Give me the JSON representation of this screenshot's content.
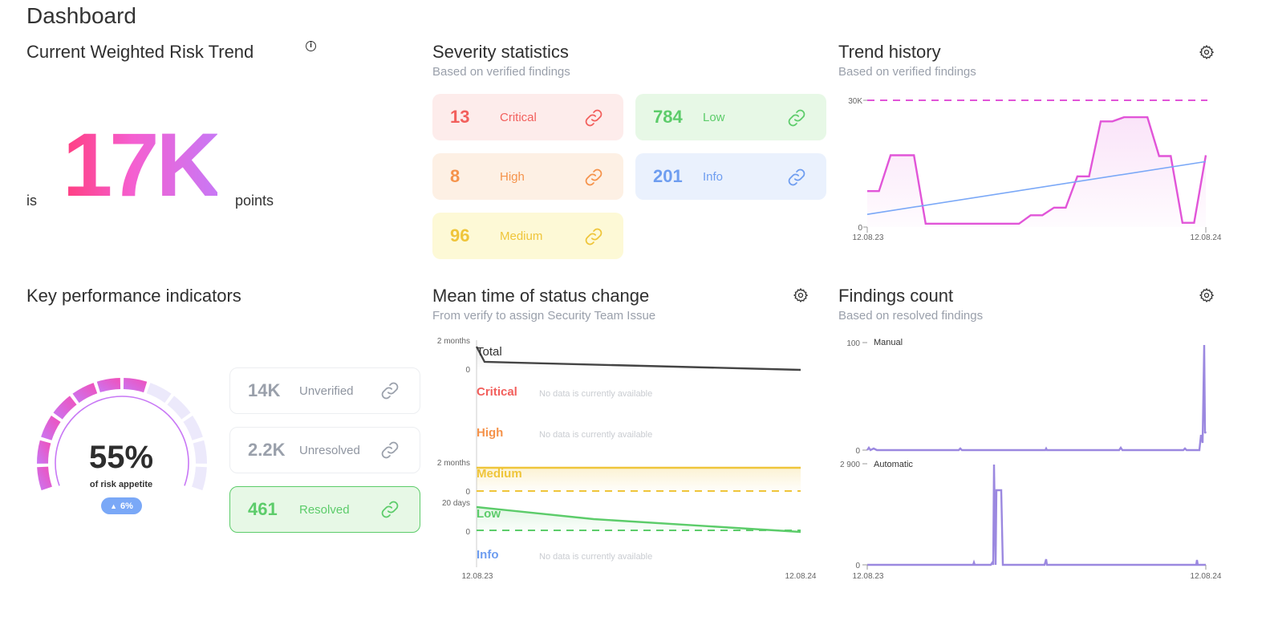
{
  "page": {
    "title": "Dashboard"
  },
  "risk": {
    "title": "Current Weighted Risk Trend",
    "prefix": "is",
    "value": "17K",
    "suffix": "points"
  },
  "severity": {
    "title": "Severity statistics",
    "subtitle": "Based on verified findings",
    "items": [
      {
        "count": "13",
        "label": "Critical",
        "color": "#f25f5c",
        "bg": "#fdeceb"
      },
      {
        "count": "784",
        "label": "Low",
        "color": "#5ccc6a",
        "bg": "#e7f8e6"
      },
      {
        "count": "8",
        "label": "High",
        "color": "#f5934b",
        "bg": "#fdf0e4"
      },
      {
        "count": "201",
        "label": "Info",
        "color": "#6e9df0",
        "bg": "#eaf1fd"
      },
      {
        "count": "96",
        "label": "Medium",
        "color": "#efc53a",
        "bg": "#fdf9d6"
      }
    ]
  },
  "trend": {
    "title": "Trend history",
    "subtitle": "Based on verified findings",
    "chart_data": {
      "type": "line",
      "y_ticks": [
        "30K",
        "0"
      ],
      "x_ticks": [
        "12.08.23",
        "12.08.24"
      ],
      "ylim": [
        0,
        30000
      ],
      "threshold": 30000,
      "series": [
        {
          "values": [
            8500,
            8500,
            17000,
            17000,
            17000,
            800,
            800,
            800,
            800,
            800,
            800,
            800,
            800,
            800,
            2800,
            2800,
            4600,
            4600,
            12000,
            12000,
            25000,
            25000,
            26000,
            26000,
            26000,
            16800,
            16800,
            1000,
            1000,
            17000
          ]
        }
      ],
      "regression": {
        "from": 3000,
        "to": 15500
      }
    }
  },
  "kpi": {
    "title": "Key performance indicators",
    "gauge": {
      "value": "55%",
      "caption": "of risk appetite",
      "change": "6%",
      "fill_fraction": 0.55
    },
    "items": [
      {
        "count": "14K",
        "label": "Unverified"
      },
      {
        "count": "2.2K",
        "label": "Unresolved"
      },
      {
        "count": "461",
        "label": "Resolved"
      }
    ]
  },
  "mttsc": {
    "title": "Mean time of status change",
    "subtitle": "From verify to assign Security Team Issue",
    "x_ticks": [
      "12.08.23",
      "12.08.24"
    ],
    "no_data": "No data is currently available",
    "rows": [
      {
        "label": "Total",
        "color": "#333333",
        "y_top": "2 months",
        "y_zero": "0"
      },
      {
        "label": "Critical",
        "color": "#f25f5c"
      },
      {
        "label": "High",
        "color": "#f5934b"
      },
      {
        "label": "Medium",
        "color": "#efc53a",
        "y_top": "2 months",
        "y_zero": "0"
      },
      {
        "label": "Low",
        "color": "#5ccc6a",
        "y_top": "20 days",
        "y_zero": "0"
      },
      {
        "label": "Info",
        "color": "#6e9df0"
      }
    ]
  },
  "findings": {
    "title": "Findings count",
    "subtitle": "Based on resolved findings",
    "x_ticks": [
      "12.08.23",
      "12.08.24"
    ],
    "manual": {
      "label": "Manual",
      "y_top": "100",
      "y_zero": "0"
    },
    "automatic": {
      "label": "Automatic",
      "y_top": "2 900",
      "y_zero": "0"
    }
  },
  "colors": {
    "accent_pink": "#e155d8",
    "accent_purple": "#9b88e0",
    "link_blue": "#7aa8f7"
  }
}
